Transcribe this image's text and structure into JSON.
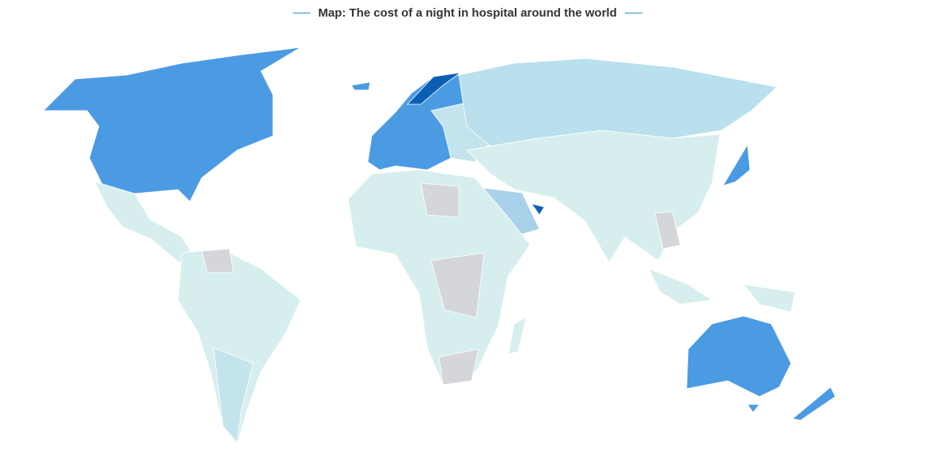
{
  "title": "Map: The cost of a night in hospital around the world"
}
